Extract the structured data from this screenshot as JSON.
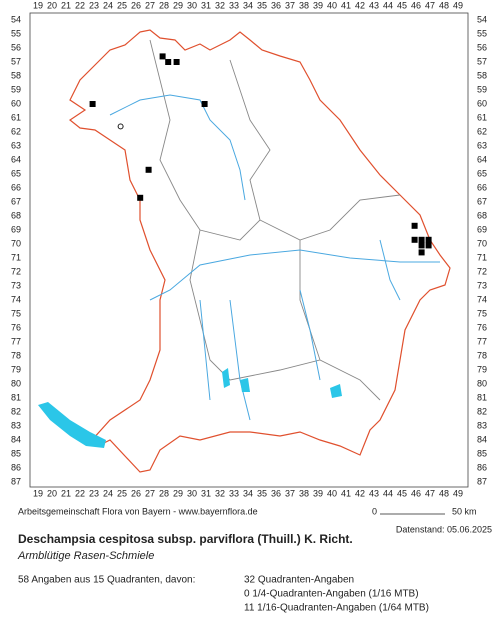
{
  "grid": {
    "columns": [
      19,
      20,
      21,
      22,
      23,
      24,
      25,
      26,
      27,
      28,
      29,
      30,
      31,
      32,
      33,
      34,
      35,
      36,
      37,
      38,
      39,
      40,
      41,
      42,
      43,
      44,
      45,
      46,
      47,
      48,
      49
    ],
    "rows": [
      54,
      55,
      56,
      57,
      58,
      59,
      60,
      61,
      62,
      63,
      64,
      65,
      66,
      67,
      68,
      69,
      70,
      71,
      72,
      73,
      74,
      75,
      76,
      77,
      78,
      79,
      80,
      81,
      82,
      83,
      84,
      85,
      86,
      87
    ]
  },
  "records": [
    {
      "x": 27.9,
      "y": 56.6,
      "kind": "filled"
    },
    {
      "x": 28.3,
      "y": 57.0,
      "kind": "filled"
    },
    {
      "x": 28.9,
      "y": 57.0,
      "kind": "filled"
    },
    {
      "x": 22.9,
      "y": 60.0,
      "kind": "filled"
    },
    {
      "x": 30.9,
      "y": 60.0,
      "kind": "filled"
    },
    {
      "x": 24.9,
      "y": 61.6,
      "kind": "open"
    },
    {
      "x": 26.9,
      "y": 64.7,
      "kind": "filled"
    },
    {
      "x": 26.3,
      "y": 66.7,
      "kind": "filled"
    },
    {
      "x": 45.9,
      "y": 68.7,
      "kind": "filled"
    },
    {
      "x": 45.9,
      "y": 69.7,
      "kind": "filled"
    },
    {
      "x": 46.4,
      "y": 69.7,
      "kind": "filled"
    },
    {
      "x": 46.9,
      "y": 69.7,
      "kind": "filled"
    },
    {
      "x": 46.4,
      "y": 70.1,
      "kind": "filled"
    },
    {
      "x": 46.9,
      "y": 70.1,
      "kind": "filled"
    },
    {
      "x": 46.4,
      "y": 70.6,
      "kind": "filled"
    }
  ],
  "footer": {
    "credit": "Arbeitsgemeinschaft Flora von Bayern - www.bayernflora.de",
    "scale_start": "0",
    "scale_end": "50 km",
    "date": "Datenstand: 05.06.2025",
    "title": "Deschampsia cespitosa subsp. parviflora (Thuill.) K. Richt.",
    "common_name": "Armblütige Rasen-Schmiele",
    "summary": "58 Angaben aus 15 Quadranten, davon:",
    "counts": [
      "32 Quadranten-Angaben",
      "0 1/4-Quadranten-Angaben (1/16 MTB)",
      "11 1/16-Quadranten-Angaben (1/64 MTB)"
    ]
  }
}
